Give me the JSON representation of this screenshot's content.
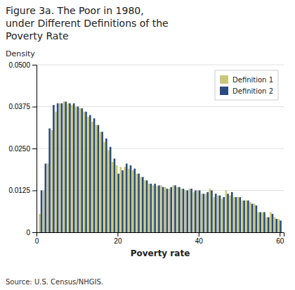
{
  "chart_data": {
    "type": "bar",
    "title": "Figure 3a. The Poor in 1980,\nunder Different Definitions of the\nPoverty Rate",
    "y_label": "Density",
    "x_label": "Poverty rate",
    "annotations": [
      "Source: U.S. Census/NHGIS."
    ],
    "x": [
      1,
      2,
      3,
      4,
      5,
      6,
      7,
      8,
      9,
      10,
      11,
      12,
      13,
      14,
      15,
      16,
      17,
      18,
      19,
      20,
      21,
      22,
      23,
      24,
      25,
      26,
      27,
      28,
      29,
      30,
      31,
      32,
      33,
      34,
      35,
      36,
      37,
      38,
      39,
      40,
      41,
      42,
      43,
      44,
      45,
      46,
      47,
      48,
      49,
      50,
      51,
      52,
      53,
      54,
      55,
      56,
      57,
      58,
      59,
      60
    ],
    "xlim": [
      0,
      61
    ],
    "xticks": [
      0,
      20,
      40,
      60
    ],
    "ylim": [
      0,
      0.05
    ],
    "yticks": [
      0,
      0.0125,
      {
        "value": 0.025,
        "label": "0.0250"
      },
      0.0375,
      {
        "value": 0.05,
        "label": "0.0500"
      }
    ],
    "grid": true,
    "legend": "upper right",
    "series": [
      {
        "name": "Definition 1",
        "color": "#c8c87a",
        "values": [
          0.0055,
          0.0125,
          0.0205,
          0.0305,
          0.036,
          0.0385,
          0.039,
          0.0385,
          0.038,
          0.0375,
          0.037,
          0.036,
          0.0345,
          0.033,
          0.032,
          0.03,
          0.027,
          0.0245,
          0.021,
          0.02,
          0.0195,
          0.0195,
          0.019,
          0.0185,
          0.0175,
          0.0165,
          0.0155,
          0.0145,
          0.014,
          0.0138,
          0.014,
          0.0135,
          0.013,
          0.014,
          0.0135,
          0.013,
          0.0125,
          0.013,
          0.012,
          0.0125,
          0.0115,
          0.0115,
          0.013,
          0.0105,
          0.011,
          0.01,
          0.0125,
          0.011,
          0.0105,
          0.0105,
          0.0095,
          0.0095,
          0.009,
          0.0085,
          0.006,
          0.006,
          0.0045,
          0.006,
          0.0045,
          0.004
        ]
      },
      {
        "name": "Definition 2",
        "color": "#2b4c7e",
        "values": [
          0.0125,
          0.0205,
          0.031,
          0.038,
          0.0385,
          0.0385,
          0.039,
          0.0385,
          0.0385,
          0.0375,
          0.037,
          0.036,
          0.035,
          0.034,
          0.032,
          0.03,
          0.028,
          0.0255,
          0.022,
          0.0175,
          0.0185,
          0.0205,
          0.02,
          0.019,
          0.0175,
          0.0165,
          0.0155,
          0.0145,
          0.0145,
          0.014,
          0.0135,
          0.013,
          0.0135,
          0.014,
          0.0135,
          0.013,
          0.0125,
          0.013,
          0.0125,
          0.0125,
          0.0115,
          0.012,
          0.0125,
          0.0115,
          0.011,
          0.0105,
          0.0115,
          0.012,
          0.0105,
          0.0105,
          0.0095,
          0.0095,
          0.0085,
          0.008,
          0.006,
          0.006,
          0.0045,
          0.0055,
          0.004,
          0.0035
        ]
      }
    ]
  }
}
